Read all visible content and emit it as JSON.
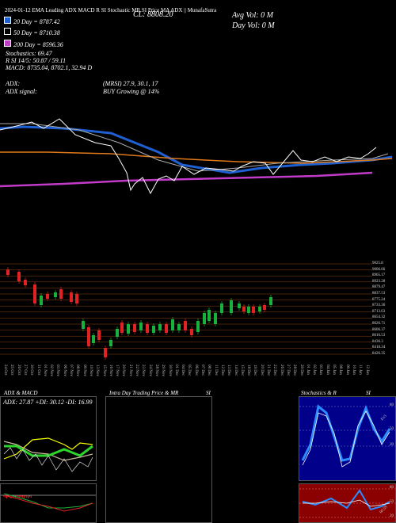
{
  "header": {
    "ticker_line": "2024-01-12 EMA Leading ADX MACD R SI Stochastic MR SI Price MA ADX  || MunafaSutra",
    "ma20": "20 Day = 8787.42",
    "ma50": "50 Day = 8710.38",
    "ma200": "200 Day = 8596.36",
    "stochastics": "Stochastics: 69.47",
    "rsi": "R SI 14/5: 50.87 / 59.11",
    "macd": "MACD: 8735.04, 8702.1, 32.94  D",
    "adx": "ADX:",
    "adx_signal": "ADX  signal:",
    "mrsi": "(MRSI) 27.9, 30.1, 17",
    "buy_signal": "BUY Growing @ 14%",
    "cl": "CL: 8808.20",
    "avg_vol": "Avg Vol: 0  M",
    "day_vol": "Day Vol: 0  M"
  },
  "colors": {
    "ma20": "#1e5fd1",
    "ma50": "#ffffff",
    "ma200": "#c03bc8",
    "orange": "#e07a1a",
    "up": "#17b23c",
    "down": "#e12222",
    "grid": "#8b4513"
  },
  "price_labels": [
    "9025.8",
    "9006.66",
    "8965.17",
    "8923.28",
    "8879.47",
    "8837.53",
    "8775.24",
    "8733.36",
    "8713.63",
    "8654.32",
    "8626.71",
    "8606.37",
    "8616.53",
    "8436.3",
    "8418.34",
    "8426.35"
  ],
  "date_labels": [
    "24 Oct",
    "25 Oct",
    "26 Oct",
    "27 Oct",
    "30 Oct",
    "31 Oct",
    "01 Nov",
    "02 Nov",
    "03 Nov",
    "06 Nov",
    "07 Nov",
    "08 Nov",
    "09 Nov",
    "10 Nov",
    "13 Nov",
    "15 Nov",
    "16 Nov",
    "17 Nov",
    "20 Nov",
    "21 Nov",
    "22 Nov",
    "23 Nov",
    "24 Nov",
    "28 Nov",
    "29 Nov",
    "30 Nov",
    "01 Dec",
    "04 Dec",
    "05 Dec",
    "06 Dec",
    "07 Dec",
    "08 Dec",
    "11 Dec",
    "12 Dec",
    "13 Dec",
    "14 Dec",
    "15 Dec",
    "18 Dec",
    "19 Dec",
    "20 Dec",
    "21 Dec",
    "22 Dec",
    "26 Dec",
    "27 Dec",
    "28 Dec",
    "29 Dec",
    "01 Jan",
    "02 Jan",
    "03 Jan",
    "04 Jan",
    "05 Jan",
    "08 Jan",
    "09 Jan",
    "10 Jan",
    "11 Jan",
    "12 Jan"
  ],
  "panels": {
    "adx_title": "ADX  & MACD",
    "adx_values": "ADX: 27.87  +DI: 30.12  -DI: 16.99",
    "intraday_title": "Intra  Day Trading Price  & MR",
    "si_1": "SI",
    "stoch_title": "Stochastics & R",
    "si_2": "SI",
    "stoch_ticks": [
      "80",
      "50",
      "20"
    ],
    "rsi_ticks": [
      "80",
      "50",
      "20"
    ],
    "stoch_tag": "Ev5",
    "rsi_tag": "60,59"
  }
}
